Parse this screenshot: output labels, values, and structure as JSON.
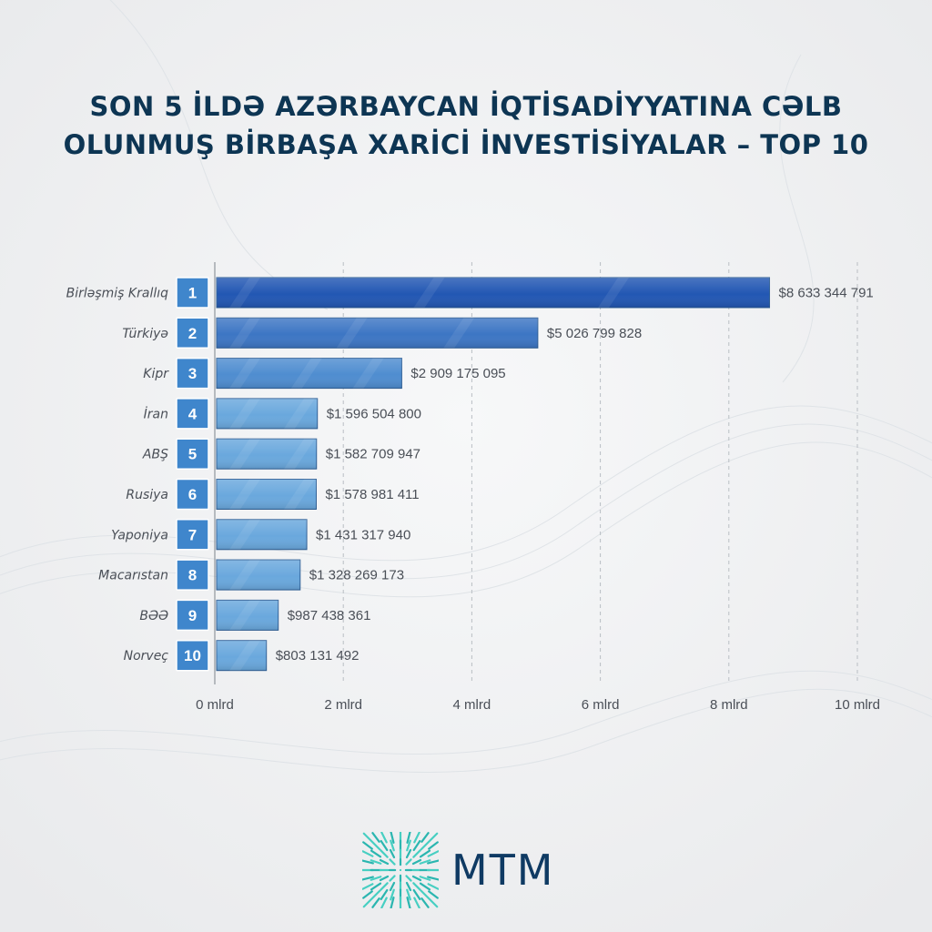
{
  "title_lines": [
    "SON 5 İLDƏ AZƏRBAYCAN İQTİSADİYYATINA CƏLB",
    "OLUNMUŞ BİRBAŞA XARİCİ İNVESTİSİYALAR – TOP 10"
  ],
  "brand": {
    "name": "MTM"
  },
  "colors": {
    "title": "#0d3553",
    "bar_dark": "#2257b3",
    "bar_mid": "#3d76c4",
    "bar_light": "#6aa8dd",
    "badge": "#3f86cc",
    "label": "#4a4f57"
  },
  "chart_data": {
    "type": "bar",
    "orientation": "horizontal",
    "categories": [
      "Birləşmiş Krallıq",
      "Türkiyə",
      "Kipr",
      "İran",
      "ABŞ",
      "Rusiya",
      "Yaponiya",
      "Macarıstan",
      "BƏƏ",
      "Norveç"
    ],
    "ranks": [
      "1",
      "2",
      "3",
      "4",
      "5",
      "6",
      "7",
      "8",
      "9",
      "10"
    ],
    "values": [
      8633344791,
      5026799828,
      2909175095,
      1596504800,
      1582709947,
      1578981411,
      1431317940,
      1328269173,
      987438361,
      803131492
    ],
    "value_labels": [
      "$8 633 344 791",
      "$5 026 799 828",
      "$2 909 175 095",
      "$1 596 504 800",
      "$1 582 709 947",
      "$1 578 981 411",
      "$1 431 317 940",
      "$1 328 269 173",
      "$987 438 361",
      "$803 131 492"
    ],
    "xlim": [
      0,
      10000000000
    ],
    "x_ticks": [
      0,
      2000000000,
      4000000000,
      6000000000,
      8000000000,
      10000000000
    ],
    "x_tick_labels": [
      "0 mlrd",
      "2 mlrd",
      "4 mlrd",
      "6 mlrd",
      "8 mlrd",
      "10 mlrd"
    ],
    "grid": "vertical dashed",
    "title": "SON 5 İLDƏ AZƏRBAYCAN İQTİSADİYYATINA CƏLB OLUNMUŞ BİRBAŞA XARİCİ İNVESTİSİYALAR – TOP 10"
  }
}
